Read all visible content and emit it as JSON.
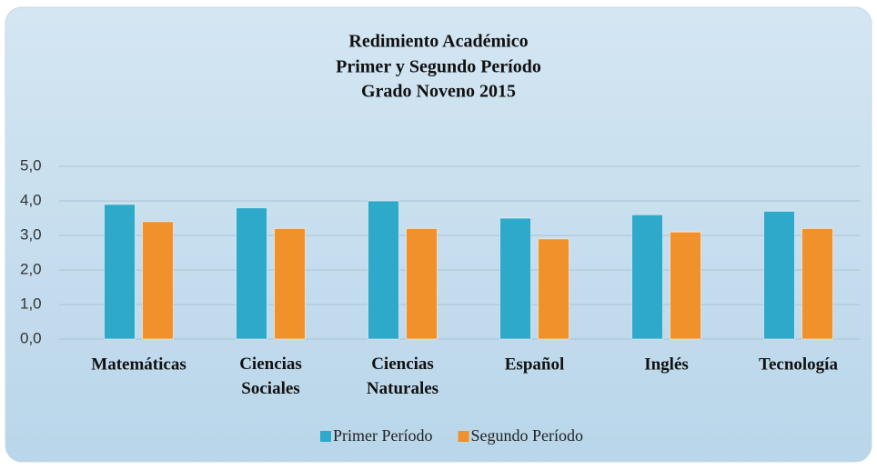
{
  "chart_data": {
    "type": "bar",
    "title": [
      "Redimiento Académico",
      "Primer y Segundo Período",
      "Grado Noveno 2015"
    ],
    "categories": [
      "Matemáticas",
      "Ciencias Sociales",
      "Ciencias Naturales",
      "Español",
      "Inglés",
      "Tecnología"
    ],
    "series": [
      {
        "name": "Primer Período",
        "color": "#2fa9c9",
        "values": [
          3.9,
          3.8,
          4.0,
          3.5,
          3.6,
          3.7
        ]
      },
      {
        "name": "Segundo Período",
        "color": "#f0912b",
        "values": [
          3.4,
          3.2,
          3.2,
          2.9,
          3.1,
          3.2
        ]
      }
    ],
    "ylim": [
      0,
      5
    ],
    "yticks": [
      {
        "value": 0,
        "label": "0,0"
      },
      {
        "value": 1,
        "label": "1,0"
      },
      {
        "value": 2,
        "label": "2,0"
      },
      {
        "value": 3,
        "label": "3,0"
      },
      {
        "value": 4,
        "label": "4,0"
      },
      {
        "value": 5,
        "label": "5,0"
      }
    ],
    "grid": true,
    "legend": "bottom"
  }
}
